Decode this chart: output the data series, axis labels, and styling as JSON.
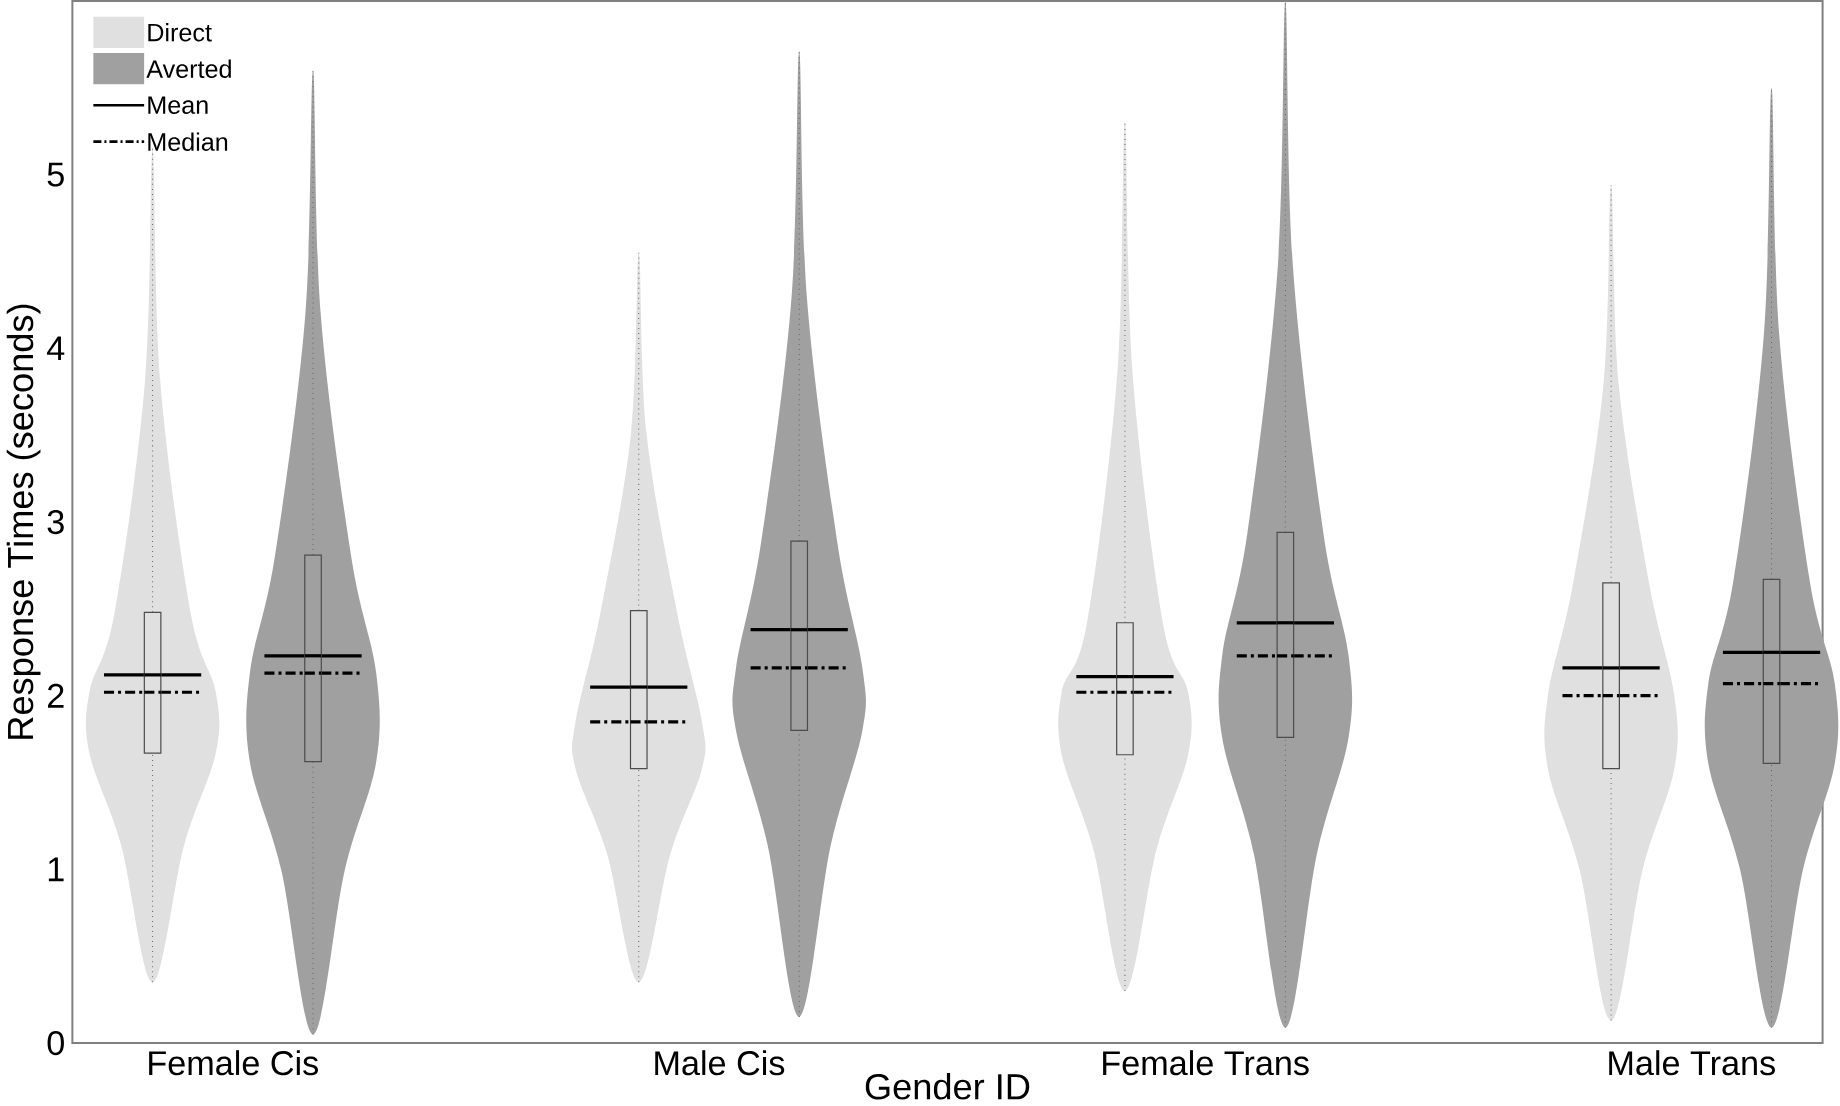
{
  "chart_data": {
    "type": "box",
    "xlabel": "Gender ID",
    "ylabel": "Response Times (seconds)",
    "categories": [
      "Female Cis",
      "Male Cis",
      "Female Trans",
      "Male Trans"
    ],
    "ylim": [
      0,
      6.0
    ],
    "yticks": [
      0,
      1,
      2,
      3,
      4,
      5
    ],
    "legend": "top left",
    "annotations": [
      "Mean",
      "Median"
    ],
    "series": [
      {
        "name": "Direct",
        "color": "#e0e0e0",
        "boxes": [
          {
            "low": 0.35,
            "q1": 1.67,
            "median": 2.02,
            "q3": 2.48,
            "high": 5.15,
            "mean": 2.12
          },
          {
            "low": 0.35,
            "q1": 1.58,
            "median": 1.85,
            "q3": 2.49,
            "high": 4.55,
            "mean": 2.05
          },
          {
            "low": 0.3,
            "q1": 1.66,
            "median": 2.02,
            "q3": 2.42,
            "high": 5.3,
            "mean": 2.11
          },
          {
            "low": 0.13,
            "q1": 1.58,
            "median": 2.0,
            "q3": 2.65,
            "high": 4.94,
            "mean": 2.16
          }
        ]
      },
      {
        "name": "Averted",
        "color": "#a0a0a0",
        "boxes": [
          {
            "low": 0.05,
            "q1": 1.62,
            "median": 2.13,
            "q3": 2.81,
            "high": 5.6,
            "mean": 2.23
          },
          {
            "low": 0.15,
            "q1": 1.8,
            "median": 2.16,
            "q3": 2.89,
            "high": 5.71,
            "mean": 2.38
          },
          {
            "low": 0.09,
            "q1": 1.76,
            "median": 2.23,
            "q3": 2.94,
            "high": 6.0,
            "mean": 2.42
          },
          {
            "low": 0.09,
            "q1": 1.61,
            "median": 2.07,
            "q3": 2.67,
            "high": 5.5,
            "mean": 2.25
          }
        ]
      }
    ]
  }
}
